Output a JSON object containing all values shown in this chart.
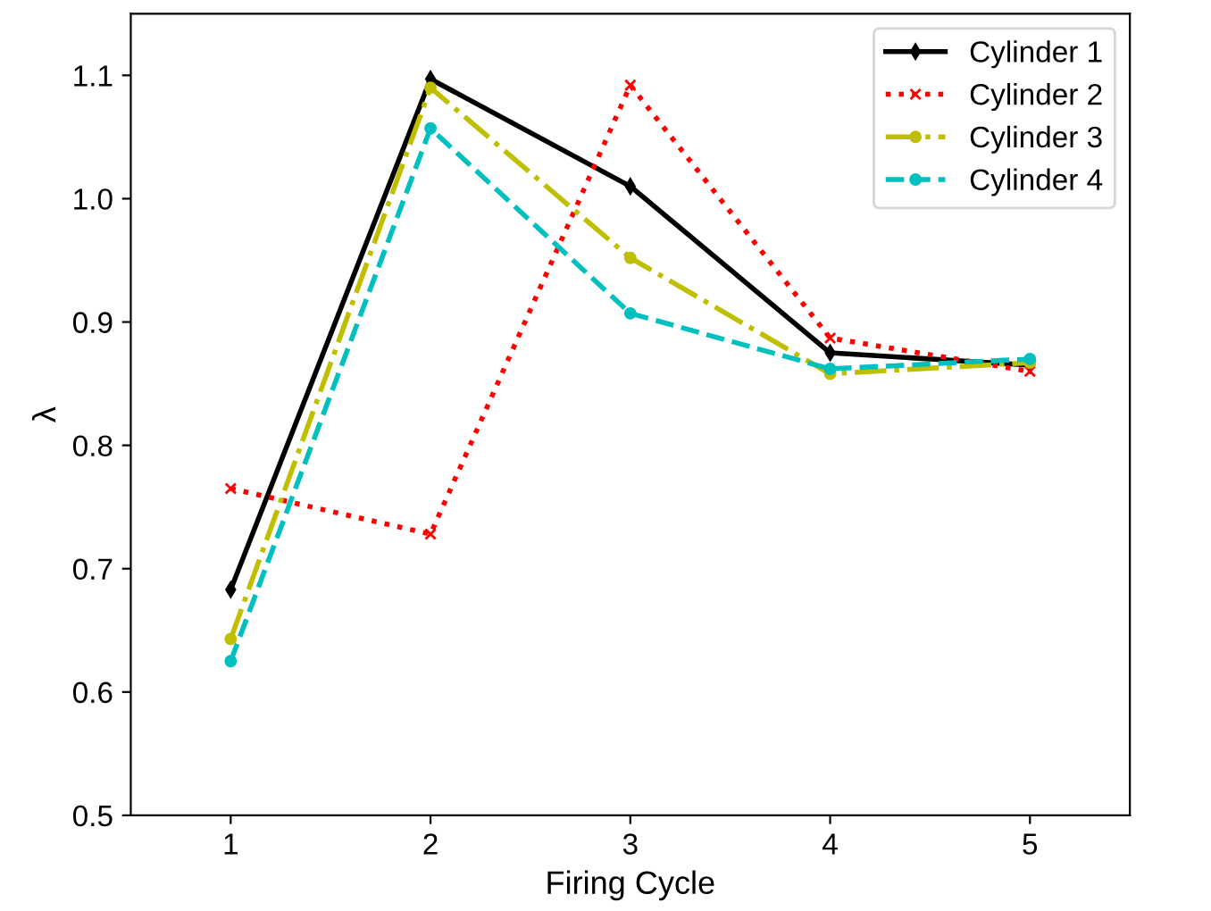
{
  "chart_data": {
    "type": "line",
    "xlabel": "Firing Cycle",
    "ylabel": "λ",
    "x": [
      1,
      2,
      3,
      4,
      5
    ],
    "series": [
      {
        "name": "Cylinder 1",
        "color": "#000000",
        "marker": "diamond",
        "line_style": "solid",
        "values": [
          0.683,
          1.097,
          1.01,
          0.875,
          0.865
        ]
      },
      {
        "name": "Cylinder 2",
        "color": "#ff0000",
        "marker": "cross",
        "line_style": "dotted",
        "values": [
          0.765,
          0.728,
          1.092,
          0.887,
          0.86
        ]
      },
      {
        "name": "Cylinder 3",
        "color": "#bfbf00",
        "marker": "circle",
        "line_style": "dashdot",
        "values": [
          0.643,
          1.09,
          0.952,
          0.858,
          0.867
        ]
      },
      {
        "name": "Cylinder 4",
        "color": "#00bfbf",
        "marker": "circle",
        "line_style": "dashed",
        "values": [
          0.625,
          1.057,
          0.907,
          0.862,
          0.87
        ]
      }
    ],
    "xlim": [
      0.5,
      5.5
    ],
    "xticks": [
      1,
      2,
      3,
      4,
      5
    ],
    "ylim": [
      0.5,
      1.15
    ],
    "yticks": [
      0.5,
      0.6,
      0.7,
      0.8,
      0.9,
      {
        "value": 1.0,
        "label": "1.0"
      },
      1.1
    ],
    "grid": false,
    "legend": "top right"
  }
}
